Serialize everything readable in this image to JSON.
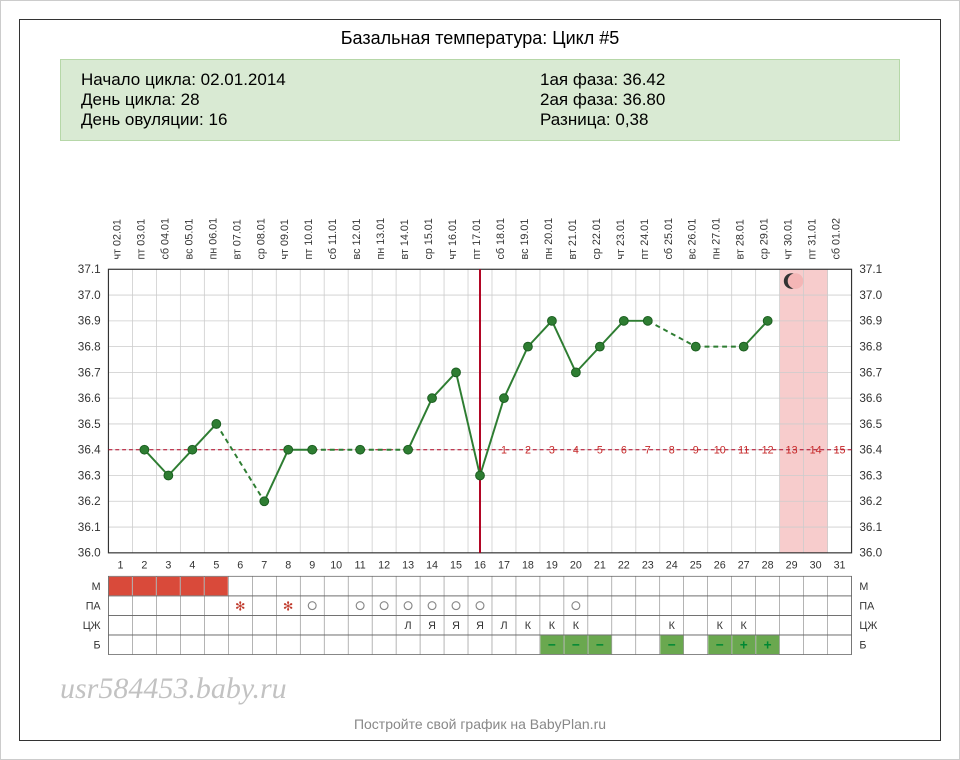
{
  "title": "Базальная температура: Цикл #5",
  "info": {
    "left": {
      "start_label": "Начало цикла:",
      "start_value": "02.01.2014",
      "dayc_label": "День цикла:",
      "dayc_value": "28",
      "ovul_label": "День овуляции:",
      "ovul_value": "16"
    },
    "right": {
      "phase1_label": "1ая фаза:",
      "phase1_value": "36.42",
      "phase2_label": "2ая фаза:",
      "phase2_value": "36.80",
      "diff_label": "Разница:",
      "diff_value": "0,38"
    }
  },
  "watermark": "usr584453.baby.ru",
  "footer": "Постройте свой график на BabyPlan.ru",
  "chart": {
    "type": "line",
    "days": 31,
    "ovulation_day": 16,
    "moon_day": 29,
    "pink_band": [
      29,
      30
    ],
    "y_min": 36.0,
    "y_max": 37.1,
    "y_step": 0.1,
    "y_labels": [
      "37.1",
      "37.0",
      "36.9",
      "36.8",
      "36.7",
      "36.6",
      "36.5",
      "36.4",
      "36.3",
      "36.2",
      "36.1",
      "36.0"
    ],
    "dates": [
      "02.01",
      "03.01",
      "04.01",
      "05.01",
      "06.01",
      "07.01",
      "08.01",
      "09.01",
      "10.01",
      "11.01",
      "12.01",
      "13.01",
      "14.01",
      "15.01",
      "16.01",
      "17.01",
      "18.01",
      "19.01",
      "20.01",
      "21.01",
      "22.01",
      "23.01",
      "24.01",
      "25.01",
      "26.01",
      "27.01",
      "28.01",
      "29.01",
      "30.01",
      "31.01",
      "01.02"
    ],
    "weekdays": [
      "чт",
      "пт",
      "сб",
      "вс",
      "пн",
      "вт",
      "ср",
      "чт",
      "пт",
      "сб",
      "вс",
      "пн",
      "вт",
      "ср",
      "чт",
      "пт",
      "сб",
      "вс",
      "пн",
      "вт",
      "ср",
      "чт",
      "пт",
      "сб",
      "вс",
      "пн",
      "вт",
      "ср",
      "чт",
      "пт",
      "сб"
    ],
    "segments": [
      {
        "from": 2,
        "to": 3,
        "style": "solid"
      },
      {
        "from": 3,
        "to": 4,
        "style": "solid"
      },
      {
        "from": 4,
        "to": 5,
        "style": "solid"
      },
      {
        "from": 5,
        "to": 7,
        "style": "dashed"
      },
      {
        "from": 7,
        "to": 8,
        "style": "solid"
      },
      {
        "from": 8,
        "to": 9,
        "style": "solid"
      },
      {
        "from": 9,
        "to": 11,
        "style": "dashed"
      },
      {
        "from": 11,
        "to": 13,
        "style": "dashed"
      },
      {
        "from": 13,
        "to": 14,
        "style": "solid"
      },
      {
        "from": 14,
        "to": 15,
        "style": "solid"
      },
      {
        "from": 15,
        "to": 16,
        "style": "solid"
      },
      {
        "from": 16,
        "to": 17,
        "style": "solid"
      },
      {
        "from": 17,
        "to": 18,
        "style": "solid"
      },
      {
        "from": 18,
        "to": 19,
        "style": "solid"
      },
      {
        "from": 19,
        "to": 20,
        "style": "solid"
      },
      {
        "from": 20,
        "to": 21,
        "style": "solid"
      },
      {
        "from": 21,
        "to": 22,
        "style": "solid"
      },
      {
        "from": 22,
        "to": 23,
        "style": "solid"
      },
      {
        "from": 23,
        "to": 25,
        "style": "dashed"
      },
      {
        "from": 25,
        "to": 27,
        "style": "dashed"
      },
      {
        "from": 27,
        "to": 28,
        "style": "solid"
      }
    ],
    "temps": {
      "2": 36.4,
      "3": 36.3,
      "4": 36.4,
      "5": 36.5,
      "7": 36.2,
      "8": 36.4,
      "9": 36.4,
      "11": 36.4,
      "13": 36.4,
      "14": 36.6,
      "15": 36.7,
      "16": 36.3,
      "17": 36.6,
      "18": 36.8,
      "19": 36.9,
      "20": 36.7,
      "21": 36.8,
      "22": 36.9,
      "23": 36.9,
      "25": 36.8,
      "27": 36.8,
      "28": 36.9
    },
    "dpo_numbers": [
      1,
      2,
      3,
      4,
      5,
      6,
      7,
      8,
      9,
      10,
      11,
      12,
      13,
      14,
      15
    ],
    "rows": {
      "labels": [
        "М",
        "ПА",
        "ЦЖ",
        "Б"
      ],
      "M_fill_days": [
        1,
        2,
        3,
        4,
        5
      ],
      "M_fill_color": "#d94a3a",
      "PA_stars": [
        6,
        8
      ],
      "PA_circles": [
        9,
        11,
        12,
        13,
        14,
        15,
        16,
        20
      ],
      "CJ": {
        "13": "Л",
        "14": "Я",
        "15": "Я",
        "16": "Я",
        "17": "Л",
        "18": "К",
        "19": "К",
        "20": "К",
        "24": "К",
        "26": "К",
        "27": "К"
      },
      "B_green_minus": [
        19,
        20,
        21,
        24,
        26
      ],
      "B_green_plus": [
        27,
        28
      ],
      "B_green_color": "#6aa84f"
    },
    "colors": {
      "grid": "#cccccc",
      "axis": "#333333",
      "line": "#2e7d32",
      "marker": "#2e7d32",
      "ov_line": "#b00020",
      "baseline": "#b00020",
      "pink": "#f4b6b6",
      "dpo_text": "#c62828",
      "row_border": "#666666",
      "bg": "#ffffff"
    },
    "baseline_y": 36.4,
    "marker_radius": 4.5,
    "line_width": 2,
    "fontsize_axis": 12,
    "fontsize_small": 11
  }
}
